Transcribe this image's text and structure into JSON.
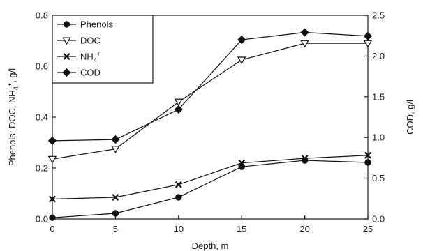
{
  "chart_data": {
    "type": "line",
    "x": [
      0,
      5,
      10,
      15,
      20,
      25
    ],
    "xlabel": "Depth, m",
    "xlim": [
      0,
      25
    ],
    "xticks": [
      "0",
      "5",
      "10",
      "15",
      "20",
      "25"
    ],
    "ylabel": "Phenols; DOC, NH4+, g/l",
    "ylabel_parts": {
      "main": "Phenols; DOC, NH",
      "sub": "4",
      "sup": "+",
      "tail": ", g/l"
    },
    "ylim": [
      0,
      0.8
    ],
    "yticks": [
      "0.0",
      "0.2",
      "0.4",
      "0.6",
      "0.8"
    ],
    "y2label": "COD, g/l",
    "y2lim": [
      0,
      2.5
    ],
    "y2ticks": [
      "0.0",
      "0.5",
      "1.0",
      "1.5",
      "2.0",
      "2.5"
    ],
    "grid": false,
    "legend_position": "top-left",
    "series": [
      {
        "name": "Phenols",
        "axis": "left",
        "marker": "filled-circle",
        "values": [
          0.005,
          0.022,
          0.085,
          0.205,
          0.23,
          0.222
        ]
      },
      {
        "name": "DOC",
        "axis": "left",
        "marker": "open-triangle-down",
        "values": [
          0.235,
          0.275,
          0.46,
          0.625,
          0.69,
          0.69
        ]
      },
      {
        "name": "NH4+",
        "name_parts": {
          "main": "NH",
          "sub": "4",
          "sup": "+"
        },
        "axis": "left",
        "marker": "x-cross",
        "values": [
          0.078,
          0.085,
          0.135,
          0.22,
          0.238,
          0.25
        ]
      },
      {
        "name": "COD",
        "axis": "right",
        "marker": "filled-diamond",
        "values": [
          0.96,
          0.975,
          1.345,
          2.2,
          2.29,
          2.245
        ]
      }
    ]
  }
}
